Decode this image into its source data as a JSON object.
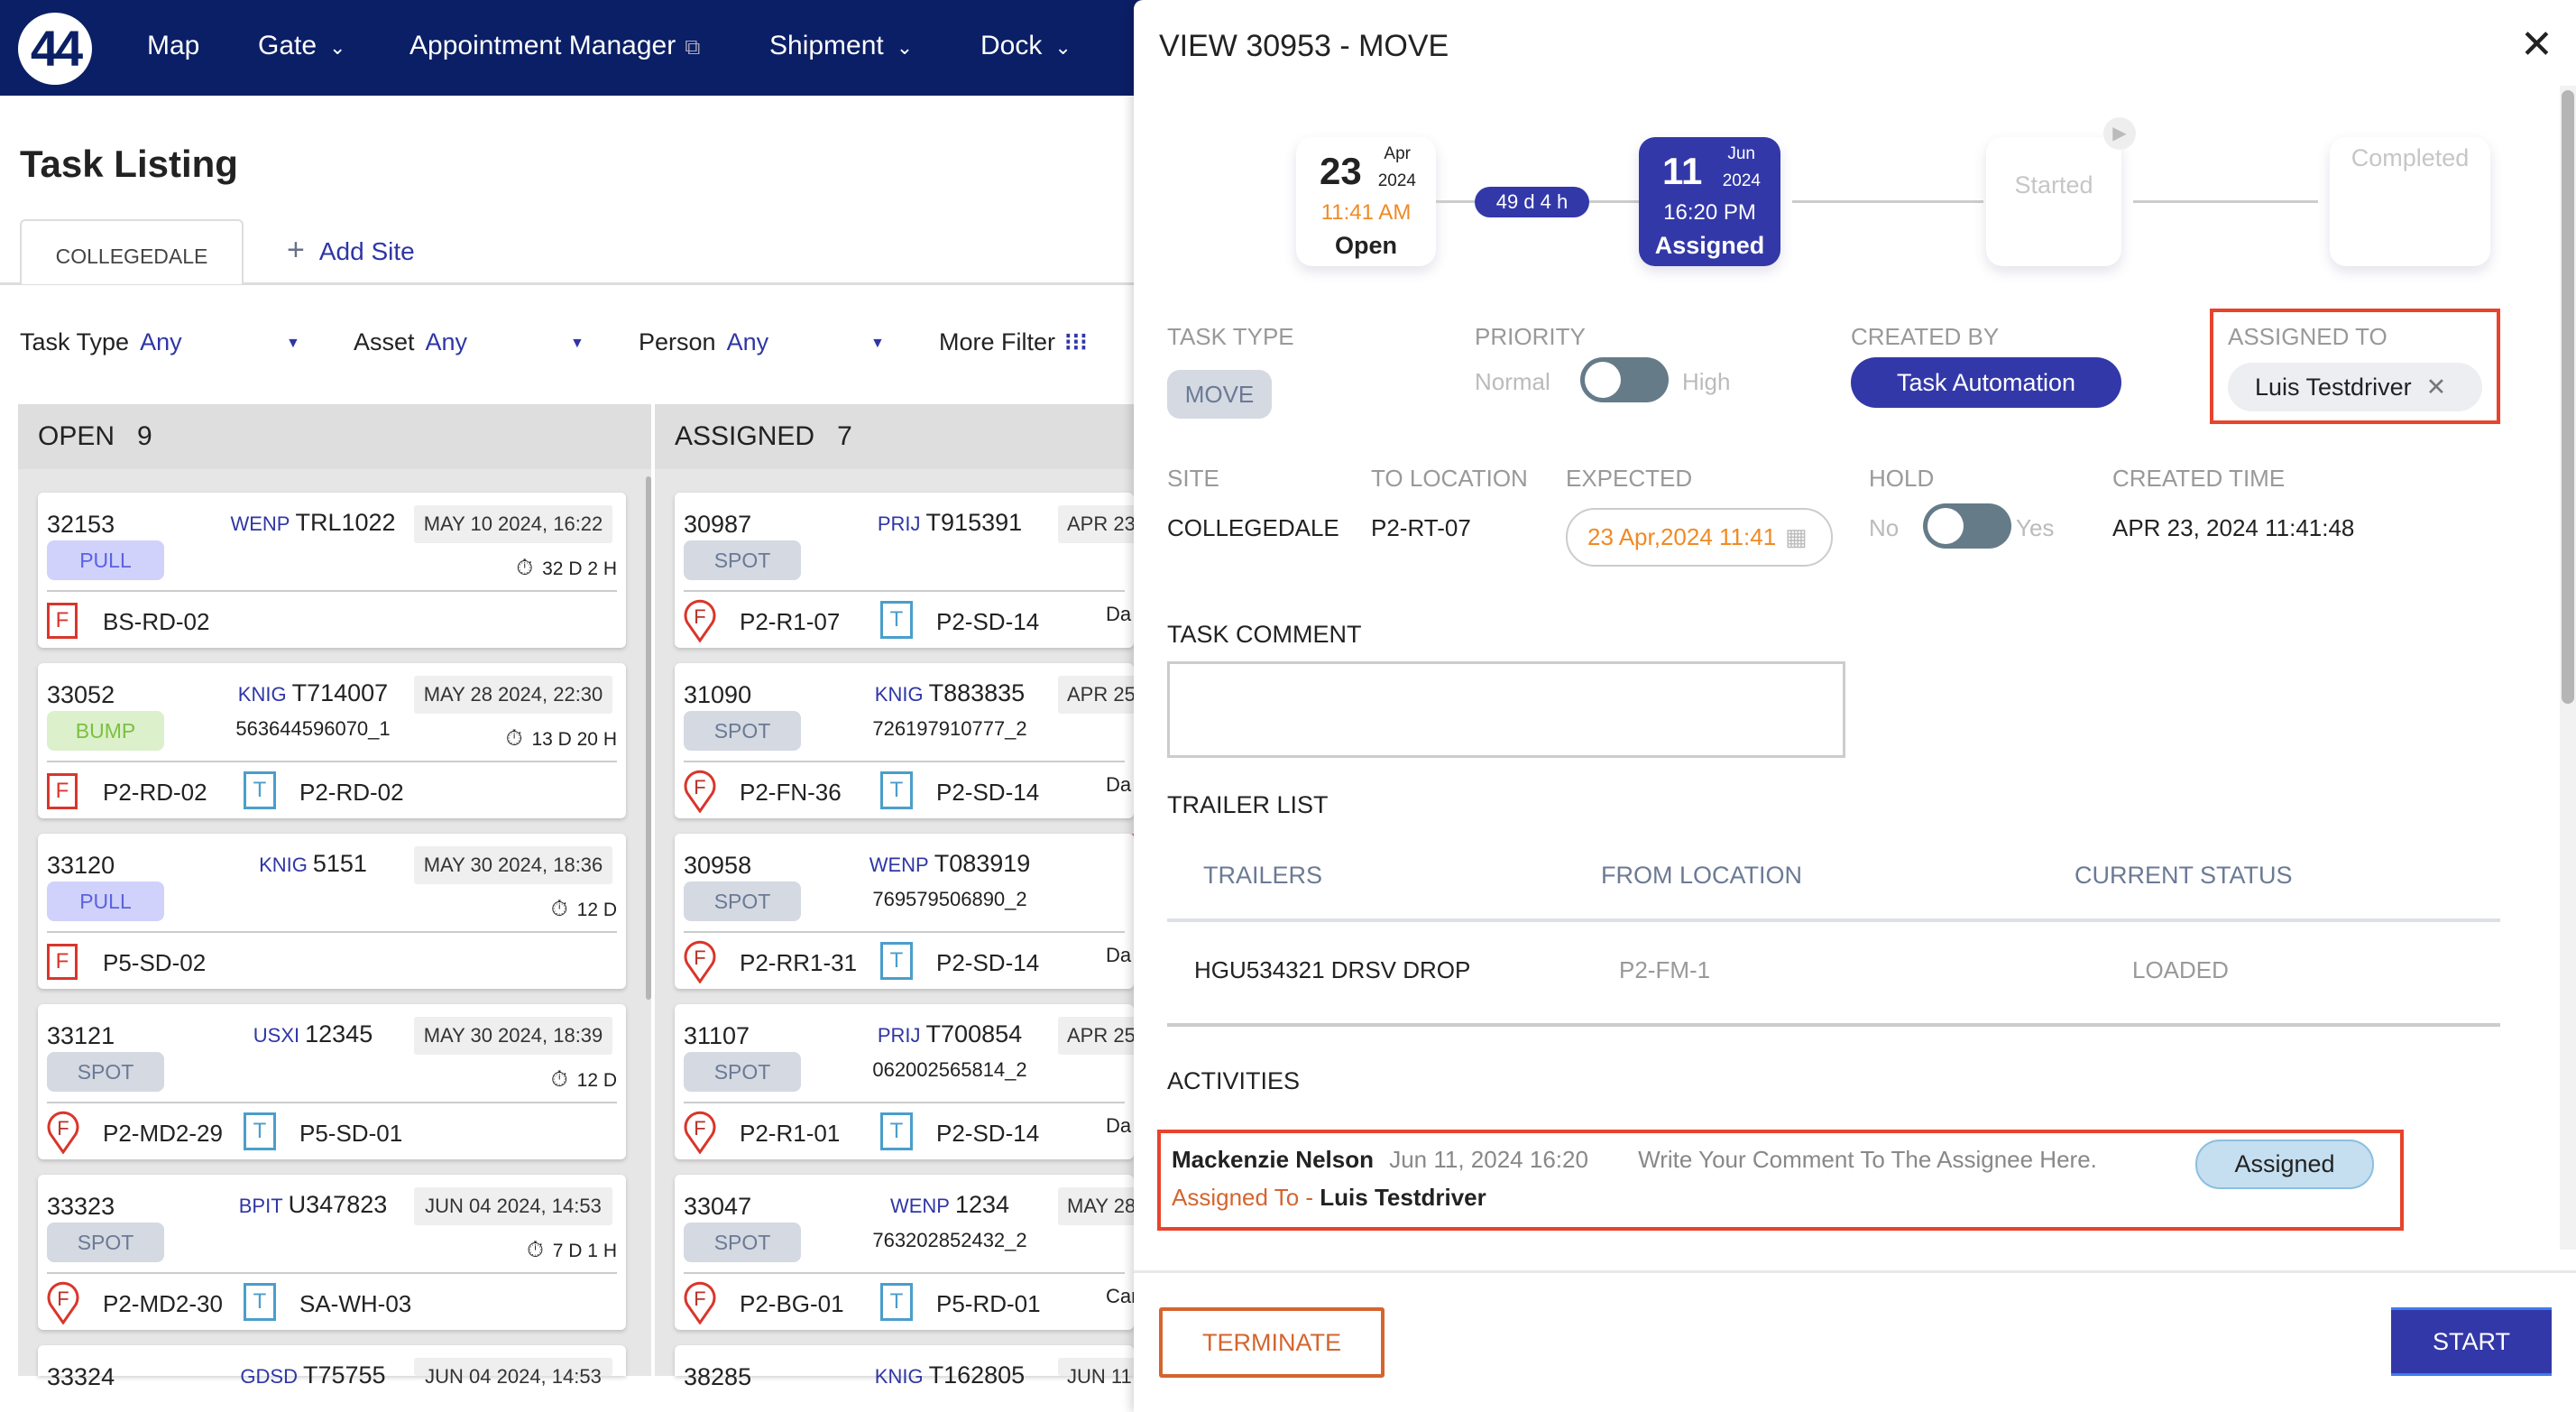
{
  "nav": {
    "logo": "44",
    "items": [
      {
        "label": "Map",
        "dropdown": false
      },
      {
        "label": "Gate",
        "dropdown": true
      },
      {
        "label": "Appointment Manager",
        "external": true
      },
      {
        "label": "Shipment",
        "dropdown": true
      },
      {
        "label": "Dock",
        "dropdown": true
      }
    ]
  },
  "page": {
    "title": "Task Listing",
    "site_tab": "COLLEGEDALE",
    "add_site": "Add Site",
    "filters": [
      {
        "label": "Task Type",
        "value": "Any"
      },
      {
        "label": "Asset",
        "value": "Any"
      },
      {
        "label": "Person",
        "value": "Any"
      }
    ],
    "more_filter": "More Filter"
  },
  "columns": [
    {
      "title": "OPEN",
      "count": "9",
      "cards": [
        {
          "id": "32153",
          "company": "WENP",
          "trailer": "TRL1022",
          "date": "MAY 10 2024, 16:22",
          "type": "PULL",
          "elapsed": "32 D 2 H",
          "from_style": "square",
          "from": "BS-RD-02"
        },
        {
          "id": "33052",
          "company": "KNIG",
          "trailer": "T714007",
          "sub": "563644596070_1",
          "date": "MAY 28 2024, 22:30",
          "type": "BUMP",
          "elapsed": "13 D 20 H",
          "from_style": "square",
          "from": "P2-RD-02",
          "to": "P2-RD-02"
        },
        {
          "id": "33120",
          "company": "KNIG",
          "trailer": "5151",
          "date": "MAY 30 2024, 18:36",
          "type": "PULL",
          "elapsed": "12 D",
          "from_style": "square",
          "from": "P5-SD-02"
        },
        {
          "id": "33121",
          "company": "USXI",
          "trailer": "12345",
          "date": "MAY 30 2024, 18:39",
          "type": "SPOT",
          "elapsed": "12 D",
          "from_style": "pin",
          "from": "P2-MD2-29",
          "to": "P5-SD-01"
        },
        {
          "id": "33323",
          "company": "BPIT",
          "trailer": "U347823",
          "date": "JUN 04 2024, 14:53",
          "type": "SPOT",
          "elapsed": "7 D 1 H",
          "from_style": "pin",
          "from": "P2-MD2-30",
          "to": "SA-WH-03"
        },
        {
          "id": "33324",
          "company": "GDSD",
          "trailer": "T75755",
          "date": "JUN 04 2024, 14:53"
        }
      ]
    },
    {
      "title": "ASSIGNED",
      "count": "7",
      "cards": [
        {
          "id": "30987",
          "company": "PRIJ",
          "trailer": "T915391",
          "date": "APR 23",
          "type": "SPOT",
          "from_style": "pin",
          "from": "P2-R1-07",
          "to": "P2-SD-14",
          "extra": "Da"
        },
        {
          "id": "31090",
          "company": "KNIG",
          "trailer": "T883835",
          "sub": "726197910777_2",
          "date": "APR 25",
          "type": "SPOT",
          "from_style": "pin",
          "from": "P2-FN-36",
          "to": "P2-SD-14",
          "extra": "Da"
        },
        {
          "id": "30958",
          "company": "WENP",
          "trailer": "T083919",
          "sub": "769579506890_2",
          "type": "SPOT",
          "from_style": "pin",
          "from": "P2-RR1-31",
          "to": "P2-SD-14",
          "extra": "Da",
          "flag": true
        },
        {
          "id": "31107",
          "company": "PRIJ",
          "trailer": "T700854",
          "sub": "062002565814_2",
          "date": "APR 25",
          "type": "SPOT",
          "from_style": "pin",
          "from": "P2-R1-01",
          "to": "P2-SD-14",
          "extra": "Da"
        },
        {
          "id": "33047",
          "company": "WENP",
          "trailer": "1234",
          "sub": "763202852432_2",
          "date": "MAY 28",
          "type": "SPOT",
          "from_style": "pin",
          "from": "P2-BG-01",
          "to": "P5-RD-01",
          "extra": "Car"
        },
        {
          "id": "38285",
          "company": "KNIG",
          "trailer": "T162805",
          "date": "JUN 11"
        }
      ]
    }
  ],
  "modal": {
    "title": "VIEW 30953 - MOVE",
    "close_icon": "close-icon",
    "steps": {
      "open": {
        "day": "23",
        "month": "Apr",
        "year": "2024",
        "time": "11:41 AM",
        "label": "Open"
      },
      "duration": "49 d 4 h",
      "assigned": {
        "day": "11",
        "month": "Jun",
        "year": "2024",
        "time": "16:20 PM",
        "label": "Assigned"
      },
      "started": {
        "label": "Started"
      },
      "completed": {
        "label": "Completed"
      }
    },
    "fields": {
      "task_type_label": "TASK TYPE",
      "task_type": "MOVE",
      "priority_label": "PRIORITY",
      "priority_off": "Normal",
      "priority_on": "High",
      "priority_high": false,
      "created_by_label": "CREATED BY",
      "created_by": "Task Automation",
      "assigned_to_label": "ASSIGNED TO",
      "assigned_to": "Luis Testdriver",
      "site_label": "SITE",
      "site": "COLLEGEDALE",
      "to_location_label": "TO LOCATION",
      "to_location": "P2-RT-07",
      "expected_label": "EXPECTED",
      "expected": "23 Apr,2024 11:41",
      "hold_label": "HOLD",
      "hold_off": "No",
      "hold_on": "Yes",
      "hold": false,
      "created_time_label": "CREATED TIME",
      "created_time": "APR 23, 2024 11:41:48"
    },
    "task_comment_label": "TASK COMMENT",
    "task_comment": "",
    "trailer_list": {
      "label": "TRAILER LIST",
      "headers": [
        "TRAILERS",
        "FROM LOCATION",
        "CURRENT STATUS"
      ],
      "rows": [
        {
          "trailer": "HGU534321   DRSV   DROP",
          "from": "P2-FM-1",
          "status": "LOADED"
        }
      ]
    },
    "activities": {
      "label": "ACTIVITIES",
      "items": [
        {
          "user": "Mackenzie Nelson",
          "time": "Jun 11, 2024 16:20",
          "comment": "Write Your Comment To The Assignee Here.",
          "assigned_prefix": "Assigned To -",
          "assignee": "Luis Testdriver",
          "status": "Assigned"
        }
      ]
    },
    "terminate": "TERMINATE",
    "start": "START"
  },
  "colors": {
    "nav": "#0b1f66",
    "primary": "#3338a8",
    "accent_orange": "#f08a24",
    "highlight_red": "#e8432b"
  }
}
